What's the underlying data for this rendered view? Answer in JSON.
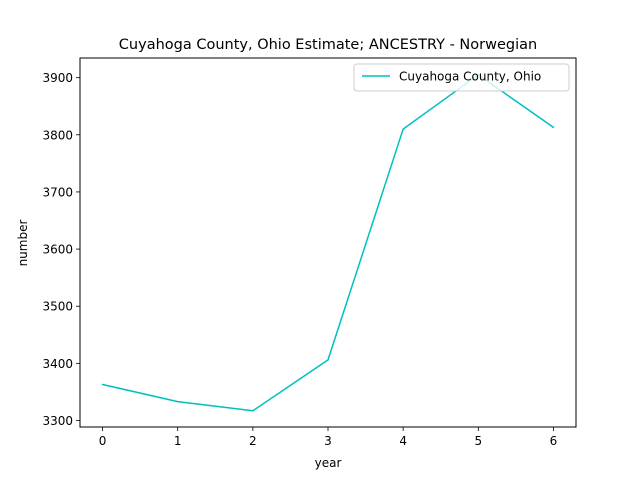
{
  "chart_data": {
    "type": "line",
    "title": "Cuyahoga County, Ohio Estimate; ANCESTRY - Norwegian",
    "xlabel": "year",
    "ylabel": "number",
    "x": [
      0,
      1,
      2,
      3,
      4,
      5,
      6
    ],
    "series": [
      {
        "name": "Cuyahoga County, Ohio",
        "values": [
          3363,
          3333,
          3317,
          3406,
          3810,
          3905,
          3813
        ],
        "color": "#00bfbf"
      }
    ],
    "xticks": [
      0,
      1,
      2,
      3,
      4,
      5,
      6
    ],
    "yticks": [
      3300,
      3400,
      3500,
      3600,
      3700,
      3800,
      3900
    ],
    "xlim": [
      -0.3,
      6.3
    ],
    "ylim": [
      3288.6,
      3934.4
    ],
    "legend": "upper right",
    "grid": false
  }
}
